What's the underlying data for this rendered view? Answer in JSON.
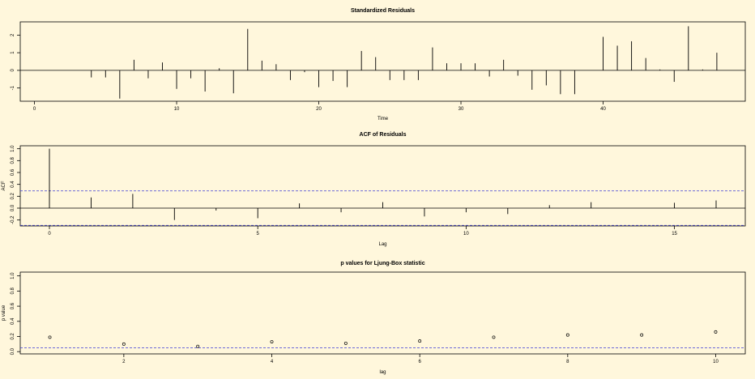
{
  "background": "#fff7dc",
  "chart_data": [
    {
      "id": "residuals",
      "type": "line",
      "style": "histogram-spikes",
      "title": "Standardized Residuals",
      "xlabel": "Time",
      "ylabel": "",
      "xlim": [
        -1,
        50
      ],
      "ylim": [
        -1.75,
        2.75
      ],
      "xticks": [
        0,
        10,
        20,
        30,
        40
      ],
      "yticks": [
        -1,
        0,
        1,
        2
      ],
      "zero_line": true,
      "x": [
        1,
        2,
        3,
        4,
        5,
        6,
        7,
        8,
        9,
        10,
        11,
        12,
        13,
        14,
        15,
        16,
        17,
        18,
        19,
        20,
        21,
        22,
        23,
        24,
        25,
        26,
        27,
        28,
        29,
        30,
        31,
        32,
        33,
        34,
        35,
        36,
        37,
        38,
        39,
        40,
        41,
        42,
        43,
        44,
        45,
        46,
        47,
        48
      ],
      "values": [
        0,
        0,
        0,
        -0.4,
        -0.4,
        -1.6,
        0.6,
        -0.45,
        0.45,
        -1.05,
        -0.45,
        -1.2,
        0.12,
        -1.3,
        2.35,
        0.55,
        0.35,
        -0.55,
        -0.1,
        -0.95,
        -0.6,
        -0.95,
        1.1,
        0.75,
        -0.55,
        -0.55,
        -0.55,
        1.3,
        0.4,
        0.4,
        0.4,
        -0.35,
        0.6,
        -0.3,
        -1.1,
        -0.85,
        -1.35,
        -1.35,
        0,
        1.9,
        1.4,
        1.65,
        0.7,
        0.05,
        -0.65,
        2.5,
        0.05,
        1.0
      ]
    },
    {
      "id": "acf",
      "type": "bar",
      "style": "spikes",
      "title": "ACF of Residuals",
      "xlabel": "Lag",
      "ylabel": "ACF",
      "xlim": [
        -0.7,
        16.7
      ],
      "ylim": [
        -0.3,
        1.05
      ],
      "xticks": [
        0,
        5,
        10,
        15
      ],
      "yticks": [
        -0.2,
        0.0,
        0.2,
        0.4,
        0.6,
        0.8,
        1.0
      ],
      "ci": 0.29,
      "lags": [
        0,
        1,
        2,
        3,
        4,
        5,
        6,
        7,
        8,
        9,
        10,
        11,
        12,
        13,
        14,
        15,
        16
      ],
      "values": [
        1.0,
        0.18,
        0.24,
        -0.2,
        -0.04,
        -0.17,
        0.08,
        -0.07,
        0.1,
        -0.14,
        -0.07,
        -0.1,
        0.05,
        0.1,
        0.0,
        0.09,
        0.13
      ]
    },
    {
      "id": "ljungbox",
      "type": "scatter",
      "title": "p values for Ljung-Box statistic",
      "xlabel": "lag",
      "ylabel": "p value",
      "xlim": [
        0.6,
        10.4
      ],
      "ylim": [
        -0.03,
        1.05
      ],
      "xticks": [
        2,
        4,
        6,
        8,
        10
      ],
      "yticks": [
        0.0,
        0.2,
        0.4,
        0.6,
        0.8,
        1.0
      ],
      "significance": 0.05,
      "x": [
        1,
        2,
        3,
        4,
        5,
        6,
        7,
        8,
        9,
        10
      ],
      "values": [
        0.19,
        0.1,
        0.07,
        0.13,
        0.11,
        0.14,
        0.19,
        0.22,
        0.22,
        0.26
      ]
    }
  ],
  "colors": {
    "spike": "#000000",
    "ci_line": "#3b3bd6",
    "axis": "#000000"
  }
}
